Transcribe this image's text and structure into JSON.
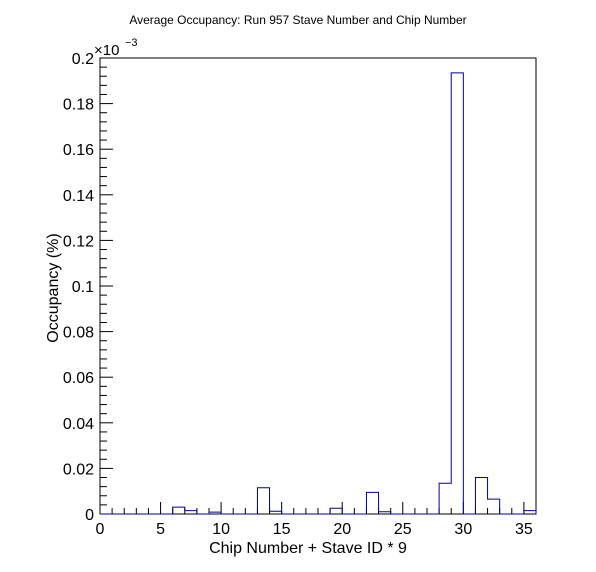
{
  "chart_data": {
    "type": "bar",
    "title": "Average Occupancy: Run 957 Stave Number and Chip Number",
    "xlabel": "Chip Number + Stave ID * 9",
    "ylabel": "Occupancy (%)",
    "y_multiplier": {
      "base": "×10",
      "exponent": "−3"
    },
    "xlim": [
      0,
      36
    ],
    "ylim": [
      0,
      0.2
    ],
    "x_ticks": [
      0,
      5,
      10,
      15,
      20,
      25,
      30,
      35
    ],
    "x_tick_labels": [
      "0",
      "5",
      "10",
      "15",
      "20",
      "25",
      "30",
      "35"
    ],
    "y_ticks": [
      0,
      0.02,
      0.04,
      0.06,
      0.08,
      0.1,
      0.12,
      0.14,
      0.16,
      0.18,
      0.2
    ],
    "y_tick_labels": [
      "0",
      "0.02",
      "0.04",
      "0.06",
      "0.08",
      "0.1",
      "0.12",
      "0.14",
      "0.16",
      "0.18",
      "0.2"
    ],
    "bin_edges_start": 0,
    "bin_width": 1,
    "values": [
      0,
      0,
      0,
      0,
      0,
      0,
      0.003,
      0.0015,
      0,
      0.0008,
      0,
      0,
      0,
      0.0115,
      0.0012,
      0,
      0,
      0,
      0,
      0.0025,
      0,
      0,
      0.0095,
      0.001,
      0,
      0,
      0,
      0,
      0.0135,
      0.1935,
      0,
      0.016,
      0.0065,
      0,
      0,
      0.0015
    ],
    "line_color": "#000099"
  }
}
